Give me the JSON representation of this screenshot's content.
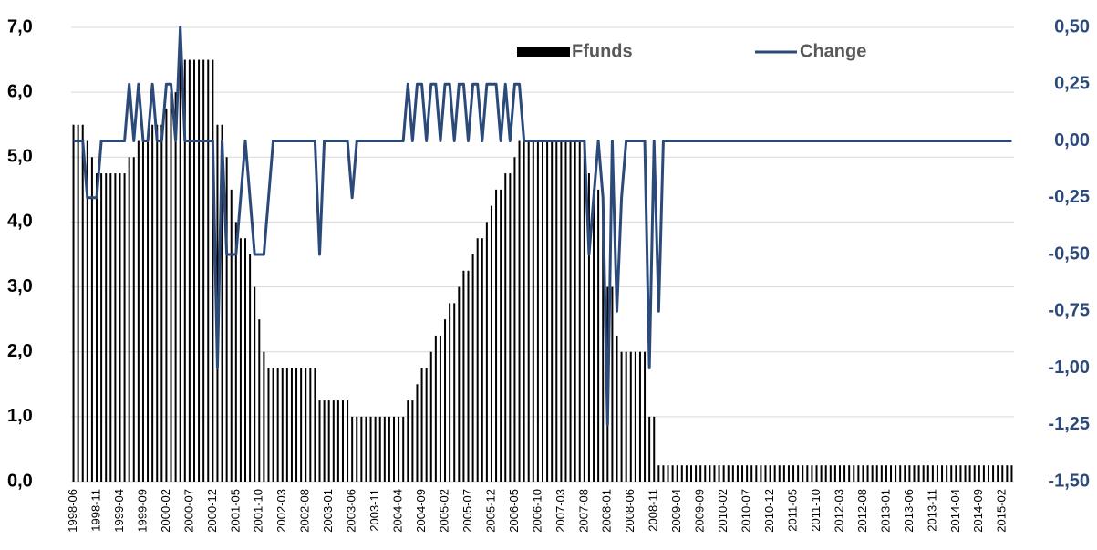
{
  "chart_data": {
    "type": "combo",
    "categories": [
      "1998-06",
      null,
      null,
      null,
      null,
      "1998-11",
      null,
      null,
      null,
      null,
      "1999-04",
      null,
      null,
      null,
      null,
      "1999-09",
      null,
      null,
      null,
      null,
      "2000-02",
      null,
      null,
      null,
      null,
      "2000-07",
      null,
      null,
      null,
      null,
      "2000-12",
      null,
      null,
      null,
      null,
      "2001-05",
      null,
      null,
      null,
      null,
      "2001-10",
      null,
      null,
      null,
      null,
      "2002-03",
      null,
      null,
      null,
      null,
      "2002-08",
      null,
      null,
      null,
      null,
      "2003-01",
      null,
      null,
      null,
      null,
      "2003-06",
      null,
      null,
      null,
      null,
      "2003-11",
      null,
      null,
      null,
      null,
      "2004-04",
      null,
      null,
      null,
      null,
      "2004-09",
      null,
      null,
      null,
      null,
      "2005-02",
      null,
      null,
      null,
      null,
      "2005-07",
      null,
      null,
      null,
      null,
      "2005-12",
      null,
      null,
      null,
      null,
      "2006-05",
      null,
      null,
      null,
      null,
      "2006-10",
      null,
      null,
      null,
      null,
      "2007-03",
      null,
      null,
      null,
      null,
      "2007-08",
      null,
      null,
      null,
      null,
      "2008-01",
      null,
      null,
      null,
      null,
      "2008-06",
      null,
      null,
      null,
      null,
      "2008-11",
      null,
      null,
      null,
      null,
      "2009-04",
      null,
      null,
      null,
      null,
      "2009-09",
      null,
      null,
      null,
      null,
      "2010-02",
      null,
      null,
      null,
      null,
      "2010-07",
      null,
      null,
      null,
      null,
      "2010-12",
      null,
      null,
      null,
      null,
      "2011-05",
      null,
      null,
      null,
      null,
      "2011-10",
      null,
      null,
      null,
      null,
      "2012-03",
      null,
      null,
      null,
      null,
      "2012-08",
      null,
      null,
      null,
      null,
      "2013-01",
      null,
      null,
      null,
      null,
      "2013-06",
      null,
      null,
      null,
      null,
      "2013-11",
      null,
      null,
      null,
      null,
      "2014-04",
      null,
      null,
      null,
      null,
      "2014-09",
      null,
      null,
      null,
      null,
      "2015-02",
      null,
      null
    ],
    "series": [
      {
        "name": "Ffunds",
        "type": "bar",
        "color": "#000000",
        "values": [
          5.5,
          5.5,
          5.5,
          5.25,
          5,
          4.75,
          4.75,
          4.75,
          4.75,
          4.75,
          4.75,
          4.75,
          5,
          5,
          5.25,
          5.25,
          5.25,
          5.5,
          5.5,
          5.5,
          5.75,
          6,
          6,
          6.5,
          6.5,
          6.5,
          6.5,
          6.5,
          6.5,
          6.5,
          6.5,
          5.5,
          5.5,
          5,
          4.5,
          4,
          3.75,
          3.75,
          3.5,
          3,
          2.5,
          2,
          1.75,
          1.75,
          1.75,
          1.75,
          1.75,
          1.75,
          1.75,
          1.75,
          1.75,
          1.75,
          1.75,
          1.25,
          1.25,
          1.25,
          1.25,
          1.25,
          1.25,
          1.25,
          1,
          1,
          1,
          1,
          1,
          1,
          1,
          1,
          1,
          1,
          1,
          1,
          1.25,
          1.25,
          1.5,
          1.75,
          1.75,
          2,
          2.25,
          2.25,
          2.5,
          2.75,
          2.75,
          3,
          3.25,
          3.25,
          3.5,
          3.75,
          3.75,
          4,
          4.25,
          4.5,
          4.5,
          4.75,
          4.75,
          5,
          5.25,
          5.25,
          5.25,
          5.25,
          5.25,
          5.25,
          5.25,
          5.25,
          5.25,
          5.25,
          5.25,
          5.25,
          5.25,
          5.25,
          5.25,
          4.75,
          4.5,
          4.5,
          4.25,
          3,
          3,
          2.25,
          2,
          2,
          2,
          2,
          2,
          2,
          1,
          1,
          0.25,
          0.25,
          0.25,
          0.25,
          0.25,
          0.25,
          0.25,
          0.25,
          0.25,
          0.25,
          0.25,
          0.25,
          0.25,
          0.25,
          0.25,
          0.25,
          0.25,
          0.25,
          0.25,
          0.25,
          0.25,
          0.25,
          0.25,
          0.25,
          0.25,
          0.25,
          0.25,
          0.25,
          0.25,
          0.25,
          0.25,
          0.25,
          0.25,
          0.25,
          0.25,
          0.25,
          0.25,
          0.25,
          0.25,
          0.25,
          0.25,
          0.25,
          0.25,
          0.25,
          0.25,
          0.25,
          0.25,
          0.25,
          0.25,
          0.25,
          0.25,
          0.25,
          0.25,
          0.25,
          0.25,
          0.25,
          0.25,
          0.25,
          0.25,
          0.25,
          0.25,
          0.25,
          0.25,
          0.25,
          0.25,
          0.25,
          0.25,
          0.25,
          0.25,
          0.25,
          0.25,
          0.25,
          0.25,
          0.25,
          0.25,
          0.25,
          0.25
        ]
      },
      {
        "name": "Change",
        "type": "line",
        "axis": "y2",
        "color": "#2b4a7a",
        "values": [
          0,
          0,
          0,
          -0.25,
          -0.25,
          -0.25,
          0,
          0,
          0,
          0,
          0,
          0,
          0.25,
          0,
          0.25,
          0,
          0,
          0.25,
          0,
          0,
          0.25,
          0.25,
          0,
          0.5,
          0,
          0,
          0,
          0,
          0,
          0,
          0,
          -1,
          0,
          -0.5,
          -0.5,
          -0.5,
          -0.25,
          0,
          -0.25,
          -0.5,
          -0.5,
          -0.5,
          -0.25,
          0,
          0,
          0,
          0,
          0,
          0,
          0,
          0,
          0,
          0,
          -0.5,
          0,
          0,
          0,
          0,
          0,
          0,
          -0.25,
          0,
          0,
          0,
          0,
          0,
          0,
          0,
          0,
          0,
          0,
          0,
          0.25,
          0,
          0.25,
          0.25,
          0,
          0.25,
          0.25,
          0,
          0.25,
          0.25,
          0,
          0.25,
          0.25,
          0,
          0.25,
          0.25,
          0,
          0.25,
          0.25,
          0.25,
          0,
          0.25,
          0,
          0.25,
          0.25,
          0,
          0,
          0,
          0,
          0,
          0,
          0,
          0,
          0,
          0,
          0,
          0,
          0,
          0,
          -0.5,
          -0.25,
          0,
          -0.25,
          -1.25,
          0,
          -0.75,
          -0.25,
          0,
          0,
          0,
          0,
          0,
          -1,
          0,
          -0.75,
          0,
          0,
          0,
          0,
          0,
          0,
          0,
          0,
          0,
          0,
          0,
          0,
          0,
          0,
          0,
          0,
          0,
          0,
          0,
          0,
          0,
          0,
          0,
          0,
          0,
          0,
          0,
          0,
          0,
          0,
          0,
          0,
          0,
          0,
          0,
          0,
          0,
          0,
          0,
          0,
          0,
          0,
          0,
          0,
          0,
          0,
          0,
          0,
          0,
          0,
          0,
          0,
          0,
          0,
          0,
          0,
          0,
          0,
          0,
          0,
          0,
          0,
          0,
          0,
          0,
          0,
          0,
          0,
          0,
          0,
          0,
          0,
          0,
          0,
          0,
          0
        ]
      }
    ],
    "ylim": [
      0,
      7
    ],
    "yticks": [
      {
        "value": 0,
        "label": "0,0"
      },
      {
        "value": 1,
        "label": "1,0"
      },
      {
        "value": 2,
        "label": "2,0"
      },
      {
        "value": 3,
        "label": "3,0"
      },
      {
        "value": 4,
        "label": "4,0"
      },
      {
        "value": 5,
        "label": "5,0"
      },
      {
        "value": 6,
        "label": "6,0"
      },
      {
        "value": 7,
        "label": "7,0"
      }
    ],
    "y2lim": [
      -1.5,
      0.5
    ],
    "y2ticks": [
      {
        "value": -1.5,
        "label": "-1,50"
      },
      {
        "value": -1.25,
        "label": "-1,25"
      },
      {
        "value": -1,
        "label": "-1,00"
      },
      {
        "value": -0.75,
        "label": "-0,75"
      },
      {
        "value": -0.5,
        "label": "-0,50"
      },
      {
        "value": -0.25,
        "label": "-0,25"
      },
      {
        "value": 0,
        "label": "0,00"
      },
      {
        "value": 0.25,
        "label": "0,25"
      },
      {
        "value": 0.5,
        "label": "0,50"
      }
    ],
    "grid": true,
    "legend": "top"
  }
}
